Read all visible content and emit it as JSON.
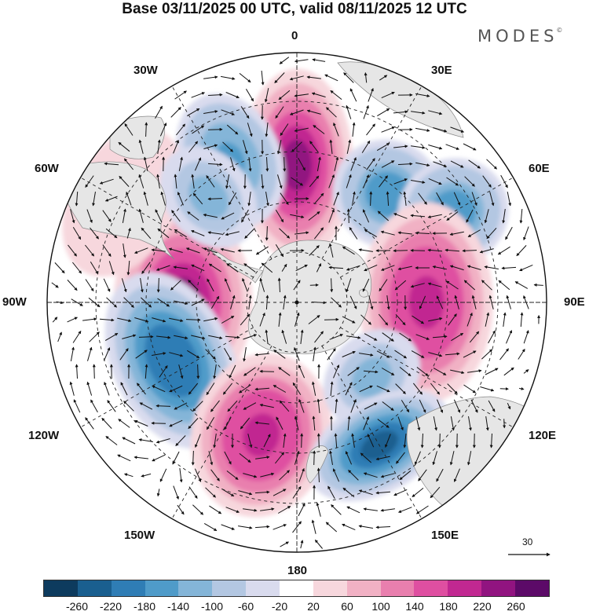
{
  "header": {
    "title": "Base 03/11/2025 00 UTC, valid 08/11/2025 12 UTC",
    "brand": "MODES",
    "brand_mark": "©"
  },
  "map": {
    "projection": "south-polar-stereographic",
    "longitude_labels": {
      "lon_0": "0",
      "lon_30e": "30E",
      "lon_60e": "60E",
      "lon_90e": "90E",
      "lon_120e": "120E",
      "lon_150e": "150E",
      "lon_180": "180",
      "lon_150w": "150W",
      "lon_120w": "120W",
      "lon_90w": "90W",
      "lon_60w": "60W",
      "lon_30w": "30W"
    },
    "anomaly_centers": [
      {
        "name": "positive-0",
        "lon": 0,
        "value": 220
      },
      {
        "name": "negative-25w",
        "lon": -25,
        "value": -160
      },
      {
        "name": "negative-40e",
        "lon": 40,
        "value": -180
      },
      {
        "name": "negative-60e",
        "lon": 60,
        "value": -170
      },
      {
        "name": "positive-90e",
        "lon": 90,
        "value": 200
      },
      {
        "name": "positive-90w",
        "lon": -90,
        "value": 220
      },
      {
        "name": "negative-115w",
        "lon": -115,
        "value": -220
      },
      {
        "name": "positive-165w",
        "lon": -165,
        "value": 200
      },
      {
        "name": "negative-135e",
        "lon": 135,
        "value": -120
      },
      {
        "name": "negative-150e",
        "lon": 150,
        "value": -240
      },
      {
        "name": "positive-60w",
        "lon": -60,
        "value": 80
      },
      {
        "name": "negative-40w",
        "lon": -40,
        "value": -120
      }
    ],
    "vector_scale": {
      "value": "30"
    }
  },
  "colorbar": {
    "ticks": [
      "-260",
      "-220",
      "-180",
      "-140",
      "-100",
      "-60",
      "-20",
      "20",
      "60",
      "100",
      "140",
      "180",
      "220",
      "260"
    ],
    "colors": [
      "#0d3b5e",
      "#1a5f8f",
      "#2f7db5",
      "#4f9bc9",
      "#84b5d8",
      "#b3c7e2",
      "#d9dbee",
      "#ffffff",
      "#f7d7dd",
      "#f1b1c4",
      "#e97fae",
      "#df4fa1",
      "#c12891",
      "#911480",
      "#5c0a68"
    ]
  }
}
